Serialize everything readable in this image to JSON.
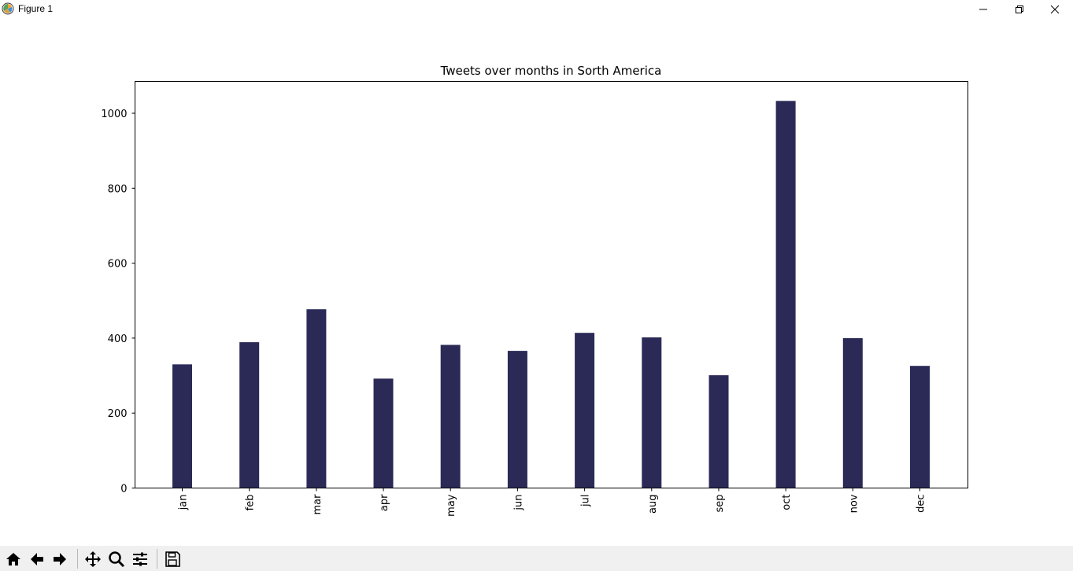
{
  "window": {
    "title": "Figure 1",
    "icons": [
      "matplotlib-logo-icon",
      "minimize-icon",
      "maximize-icon",
      "close-icon"
    ]
  },
  "toolbar": {
    "buttons": [
      "home-icon",
      "back-arrow-icon",
      "forward-arrow-icon",
      "pan-icon",
      "zoom-icon",
      "subplots-icon",
      "save-icon"
    ]
  },
  "colors": {
    "bar": "#2b2a57"
  },
  "chart_data": {
    "type": "bar",
    "title": "Tweets over months in Sorth America",
    "xlabel": "",
    "ylabel": "",
    "categories": [
      "jan",
      "feb",
      "mar",
      "apr",
      "may",
      "jun",
      "jul",
      "aug",
      "sep",
      "oct",
      "nov",
      "dec"
    ],
    "values": [
      330,
      389,
      477,
      292,
      382,
      366,
      414,
      402,
      301,
      1033,
      400,
      326
    ],
    "yticks": [
      "0",
      "200",
      "400",
      "600",
      "800",
      "1000"
    ],
    "ylim": [
      0,
      1085
    ],
    "grid": false,
    "xtick_rotation": "vertical"
  }
}
